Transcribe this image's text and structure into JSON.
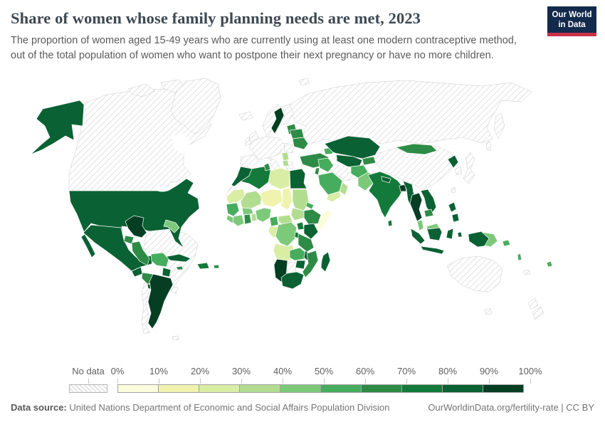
{
  "header": {
    "title": "Share of women whose family planning needs are met, 2023",
    "subtitle": "The proportion of women aged 15-49 years who are currently using at least one modern contraceptive method, out of the total population of women who want to postpone their next pregnancy or have no more children.",
    "logo": {
      "line1": "Our World",
      "line2": "in Data",
      "bg_color": "#132a4d",
      "accent_color": "#c9304a"
    }
  },
  "legend": {
    "no_data_label": "No data",
    "ticks": [
      "0%",
      "10%",
      "20%",
      "30%",
      "40%",
      "50%",
      "60%",
      "70%",
      "80%",
      "90%",
      "100%"
    ]
  },
  "footer": {
    "source_label": "Data source:",
    "source_text": " United Nations Department of Economic and Social Affairs Population Division",
    "link_text": "OurWorldinData.org/fertility-rate | CC BY"
  },
  "chart_data": {
    "type": "choropleth_map",
    "title": "Share of women whose family planning needs are met",
    "year": "2023",
    "unit": "% of women aged 15-49 whose family planning needs are satisfied with modern methods",
    "legend_bins": [
      "0-10%",
      "10-20%",
      "20-30%",
      "30-40%",
      "40-50%",
      "50-60%",
      "60-70%",
      "70-80%",
      "80-90%",
      "90-100%"
    ],
    "colors": [
      "#fcfddc",
      "#eff3ae",
      "#d9eda4",
      "#b2dd90",
      "#7cc97a",
      "#47ad5e",
      "#2e8b46",
      "#147a3b",
      "#0a6133",
      "#053e23"
    ],
    "no_data_color": "hatched",
    "regions": [
      {
        "id": "usa",
        "name": "United States",
        "bin": 8,
        "value": "80-90%"
      },
      {
        "id": "canada",
        "name": "Canada",
        "bin": null,
        "value": "No data"
      },
      {
        "id": "greenland",
        "name": "Greenland",
        "bin": null,
        "value": "No data"
      },
      {
        "id": "mexico",
        "name": "Mexico",
        "bin": 8,
        "value": "80-90%"
      },
      {
        "id": "guatemala",
        "name": "Guatemala",
        "bin": 8,
        "value": "80-90%"
      },
      {
        "id": "honduras-nicaragua",
        "name": "Honduras & Nicaragua",
        "bin": 6,
        "value": "60-70%"
      },
      {
        "id": "costa-rica-panama",
        "name": "Costa Rica & Panama",
        "bin": 8,
        "value": "80-90%"
      },
      {
        "id": "cuba",
        "name": "Cuba",
        "bin": 8,
        "value": "80-90%"
      },
      {
        "id": "hispaniola",
        "name": "Haiti & Dominican Republic",
        "bin": 7,
        "value": "70-80%"
      },
      {
        "id": "jamaica",
        "name": "Jamaica",
        "bin": 6,
        "value": "60-70%"
      },
      {
        "id": "puerto-rico",
        "name": "Puerto Rico",
        "bin": 6,
        "value": "60-70%"
      },
      {
        "id": "colombia",
        "name": "Colombia",
        "bin": 9,
        "value": "90-100%"
      },
      {
        "id": "venezuela",
        "name": "Venezuela",
        "bin": null,
        "value": "No data"
      },
      {
        "id": "guyanas",
        "name": "Guyana & Suriname",
        "bin": 4,
        "value": "40-50%"
      },
      {
        "id": "ecuador",
        "name": "Ecuador",
        "bin": 6,
        "value": "60-70%"
      },
      {
        "id": "peru",
        "name": "Peru",
        "bin": 6,
        "value": "60-70%"
      },
      {
        "id": "brazil",
        "name": "Brazil",
        "bin": null,
        "value": "No data"
      },
      {
        "id": "bolivia",
        "name": "Bolivia",
        "bin": 5,
        "value": "50-60%"
      },
      {
        "id": "paraguay",
        "name": "Paraguay",
        "bin": 8,
        "value": "80-90%"
      },
      {
        "id": "argentina",
        "name": "Argentina",
        "bin": 9,
        "value": "90-100%"
      },
      {
        "id": "chile",
        "name": "Chile",
        "bin": null,
        "value": "No data"
      },
      {
        "id": "uruguay",
        "name": "Uruguay",
        "bin": null,
        "value": "No data"
      },
      {
        "id": "falklands",
        "name": "Falkland Islands",
        "bin": null,
        "value": "No data"
      },
      {
        "id": "iceland",
        "name": "Iceland",
        "bin": null,
        "value": "No data"
      },
      {
        "id": "norway",
        "name": "Norway",
        "bin": null,
        "value": "No data"
      },
      {
        "id": "sweden",
        "name": "Sweden",
        "bin": 9,
        "value": "90-100%"
      },
      {
        "id": "finland",
        "name": "Finland",
        "bin": null,
        "value": "No data"
      },
      {
        "id": "uk",
        "name": "United Kingdom",
        "bin": null,
        "value": "No data"
      },
      {
        "id": "ireland",
        "name": "Ireland",
        "bin": null,
        "value": "No data"
      },
      {
        "id": "iberia",
        "name": "Spain & Portugal",
        "bin": null,
        "value": "No data"
      },
      {
        "id": "central-europe",
        "name": "Central & Western Europe",
        "bin": null,
        "value": "No data"
      },
      {
        "id": "italy",
        "name": "Italy",
        "bin": null,
        "value": "No data"
      },
      {
        "id": "baltics",
        "name": "Estonia, Latvia & Lithuania",
        "bin": 6,
        "value": "60-70%"
      },
      {
        "id": "belarus",
        "name": "Belarus",
        "bin": 6,
        "value": "60-70%"
      },
      {
        "id": "ukraine",
        "name": "Ukraine",
        "bin": 6,
        "value": "60-70%"
      },
      {
        "id": "romania",
        "name": "Romania & Bulgaria",
        "bin": null,
        "value": "No data"
      },
      {
        "id": "serbia",
        "name": "Serbia",
        "bin": 3,
        "value": "30-40%"
      },
      {
        "id": "albania-macedonia",
        "name": "Albania & North Macedonia",
        "bin": 3,
        "value": "30-40%"
      },
      {
        "id": "greece",
        "name": "Greece",
        "bin": null,
        "value": "No data"
      },
      {
        "id": "turkey",
        "name": "Türkiye",
        "bin": 6,
        "value": "60-70%"
      },
      {
        "id": "caucasus",
        "name": "Georgia, Armenia & Azerbaijan",
        "bin": 5,
        "value": "50-60%"
      },
      {
        "id": "russia",
        "name": "Russia",
        "bin": null,
        "value": "No data"
      },
      {
        "id": "svalbard",
        "name": "Svalbard",
        "bin": null,
        "value": "No data"
      },
      {
        "id": "morocco",
        "name": "Morocco",
        "bin": 8,
        "value": "80-90%"
      },
      {
        "id": "western-sahara",
        "name": "Western Sahara",
        "bin": null,
        "value": "No data"
      },
      {
        "id": "algeria",
        "name": "Algeria",
        "bin": 7,
        "value": "70-80%"
      },
      {
        "id": "tunisia",
        "name": "Tunisia",
        "bin": 6,
        "value": "60-70%"
      },
      {
        "id": "libya",
        "name": "Libya",
        "bin": 2,
        "value": "20-30%"
      },
      {
        "id": "egypt",
        "name": "Egypt",
        "bin": 8,
        "value": "80-90%"
      },
      {
        "id": "mauritania",
        "name": "Mauritania",
        "bin": 2,
        "value": "20-30%"
      },
      {
        "id": "mali",
        "name": "Mali",
        "bin": 3,
        "value": "30-40%"
      },
      {
        "id": "niger",
        "name": "Niger",
        "bin": 1,
        "value": "10-20%"
      },
      {
        "id": "chad",
        "name": "Chad",
        "bin": 1,
        "value": "10-20%"
      },
      {
        "id": "sudan",
        "name": "Sudan",
        "bin": 3,
        "value": "30-40%"
      },
      {
        "id": "eritrea",
        "name": "Eritrea",
        "bin": 5,
        "value": "50-60%"
      },
      {
        "id": "ethiopia",
        "name": "Ethiopia",
        "bin": 6,
        "value": "60-70%"
      },
      {
        "id": "somalia",
        "name": "Somalia",
        "bin": 0,
        "value": "0-10%"
      },
      {
        "id": "senegal-guinea",
        "name": "Senegal & Guinea",
        "bin": 5,
        "value": "50-60%"
      },
      {
        "id": "sierra-leone-liberia",
        "name": "Sierra Leone & Liberia",
        "bin": 4,
        "value": "40-50%"
      },
      {
        "id": "ivory-coast",
        "name": "Côte d'Ivoire",
        "bin": 4,
        "value": "40-50%"
      },
      {
        "id": "ghana",
        "name": "Ghana",
        "bin": 6,
        "value": "60-70%"
      },
      {
        "id": "burkina-faso",
        "name": "Burkina Faso",
        "bin": 4,
        "value": "40-50%"
      },
      {
        "id": "benin-togo",
        "name": "Benin & Togo",
        "bin": 3,
        "value": "30-40%"
      },
      {
        "id": "nigeria",
        "name": "Nigeria",
        "bin": 4,
        "value": "40-50%"
      },
      {
        "id": "cameroon",
        "name": "Cameroon",
        "bin": 5,
        "value": "50-60%"
      },
      {
        "id": "central-african-republic",
        "name": "Central African Republic",
        "bin": 3,
        "value": "30-40%"
      },
      {
        "id": "south-sudan",
        "name": "South Sudan",
        "bin": 3,
        "value": "30-40%"
      },
      {
        "id": "gabon-congo",
        "name": "Gabon & Congo",
        "bin": 2,
        "value": "20-30%"
      },
      {
        "id": "drc",
        "name": "Democratic Republic of Congo",
        "bin": 4,
        "value": "40-50%"
      },
      {
        "id": "uganda",
        "name": "Uganda",
        "bin": 7,
        "value": "70-80%"
      },
      {
        "id": "kenya",
        "name": "Kenya",
        "bin": 8,
        "value": "80-90%"
      },
      {
        "id": "rwanda-burundi",
        "name": "Rwanda & Burundi",
        "bin": 7,
        "value": "70-80%"
      },
      {
        "id": "tanzania",
        "name": "Tanzania",
        "bin": 6,
        "value": "60-70%"
      },
      {
        "id": "angola",
        "name": "Angola",
        "bin": 2,
        "value": "20-30%"
      },
      {
        "id": "zambia",
        "name": "Zambia",
        "bin": 5,
        "value": "50-60%"
      },
      {
        "id": "malawi",
        "name": "Malawi",
        "bin": 8,
        "value": "80-90%"
      },
      {
        "id": "mozambique",
        "name": "Mozambique",
        "bin": 6,
        "value": "60-70%"
      },
      {
        "id": "zimbabwe",
        "name": "Zimbabwe",
        "bin": 8,
        "value": "80-90%"
      },
      {
        "id": "botswana",
        "name": "Botswana",
        "bin": null,
        "value": "No data"
      },
      {
        "id": "namibia",
        "name": "Namibia",
        "bin": 9,
        "value": "90-100%"
      },
      {
        "id": "south-africa",
        "name": "South Africa",
        "bin": 8,
        "value": "80-90%"
      },
      {
        "id": "madagascar",
        "name": "Madagascar",
        "bin": 8,
        "value": "80-90%"
      },
      {
        "id": "syria-iraq",
        "name": "Syria & Iraq",
        "bin": 5,
        "value": "50-60%"
      },
      {
        "id": "israel-jordan",
        "name": "Israel & Jordan",
        "bin": 6,
        "value": "60-70%"
      },
      {
        "id": "saudi-arabia",
        "name": "Saudi Arabia",
        "bin": 5,
        "value": "50-60%"
      },
      {
        "id": "yemen",
        "name": "Yemen",
        "bin": 2,
        "value": "20-30%"
      },
      {
        "id": "oman",
        "name": "Oman",
        "bin": 3,
        "value": "30-40%"
      },
      {
        "id": "iran",
        "name": "Iran",
        "bin": null,
        "value": "No data"
      },
      {
        "id": "kazakhstan",
        "name": "Kazakhstan",
        "bin": 8,
        "value": "80-90%"
      },
      {
        "id": "uzbekistan-turkmenistan",
        "name": "Uzbekistan & Turkmenistan",
        "bin": 8,
        "value": "80-90%"
      },
      {
        "id": "kyrgyzstan-tajikistan",
        "name": "Kyrgyzstan & Tajikistan",
        "bin": 6,
        "value": "60-70%"
      },
      {
        "id": "afghanistan",
        "name": "Afghanistan",
        "bin": 5,
        "value": "50-60%"
      },
      {
        "id": "pakistan",
        "name": "Pakistan",
        "bin": 4,
        "value": "40-50%"
      },
      {
        "id": "india",
        "name": "India",
        "bin": 7,
        "value": "70-80%"
      },
      {
        "id": "nepal",
        "name": "Nepal",
        "bin": 8,
        "value": "80-90%"
      },
      {
        "id": "sri-lanka",
        "name": "Sri Lanka",
        "bin": 7,
        "value": "70-80%"
      },
      {
        "id": "bangladesh",
        "name": "Bangladesh",
        "bin": 9,
        "value": "90-100%"
      },
      {
        "id": "china",
        "name": "China",
        "bin": null,
        "value": "No data"
      },
      {
        "id": "mongolia",
        "name": "Mongolia",
        "bin": 6,
        "value": "60-70%"
      },
      {
        "id": "north-korea",
        "name": "North Korea",
        "bin": 8,
        "value": "80-90%"
      },
      {
        "id": "south-korea",
        "name": "South Korea",
        "bin": null,
        "value": "No data"
      },
      {
        "id": "japan",
        "name": "Japan",
        "bin": null,
        "value": "No data"
      },
      {
        "id": "taiwan",
        "name": "Taiwan",
        "bin": null,
        "value": "No data"
      },
      {
        "id": "myanmar",
        "name": "Myanmar",
        "bin": 8,
        "value": "80-90%"
      },
      {
        "id": "thailand",
        "name": "Thailand",
        "bin": 9,
        "value": "90-100%"
      },
      {
        "id": "laos-vietnam",
        "name": "Laos & Vietnam",
        "bin": 8,
        "value": "80-90%"
      },
      {
        "id": "cambodia",
        "name": "Cambodia",
        "bin": 6,
        "value": "60-70%"
      },
      {
        "id": "malaysia",
        "name": "Malaysia",
        "bin": 4,
        "value": "40-50%"
      },
      {
        "id": "indonesia",
        "name": "Indonesia",
        "bin": 8,
        "value": "80-90%"
      },
      {
        "id": "philippines",
        "name": "Philippines",
        "bin": 8,
        "value": "80-90%"
      },
      {
        "id": "png",
        "name": "Papua New Guinea",
        "bin": 4,
        "value": "40-50%"
      },
      {
        "id": "australia",
        "name": "Australia",
        "bin": null,
        "value": "No data"
      },
      {
        "id": "new-zealand",
        "name": "New Zealand",
        "bin": null,
        "value": "No data"
      },
      {
        "id": "solomon-islands",
        "name": "Solomon Islands",
        "bin": 5,
        "value": "50-60%"
      },
      {
        "id": "vanuatu",
        "name": "Vanuatu",
        "bin": 5,
        "value": "50-60%"
      },
      {
        "id": "fiji",
        "name": "Fiji",
        "bin": 5,
        "value": "50-60%"
      },
      {
        "id": "new-caledonia",
        "name": "New Caledonia",
        "bin": null,
        "value": "No data"
      }
    ]
  }
}
